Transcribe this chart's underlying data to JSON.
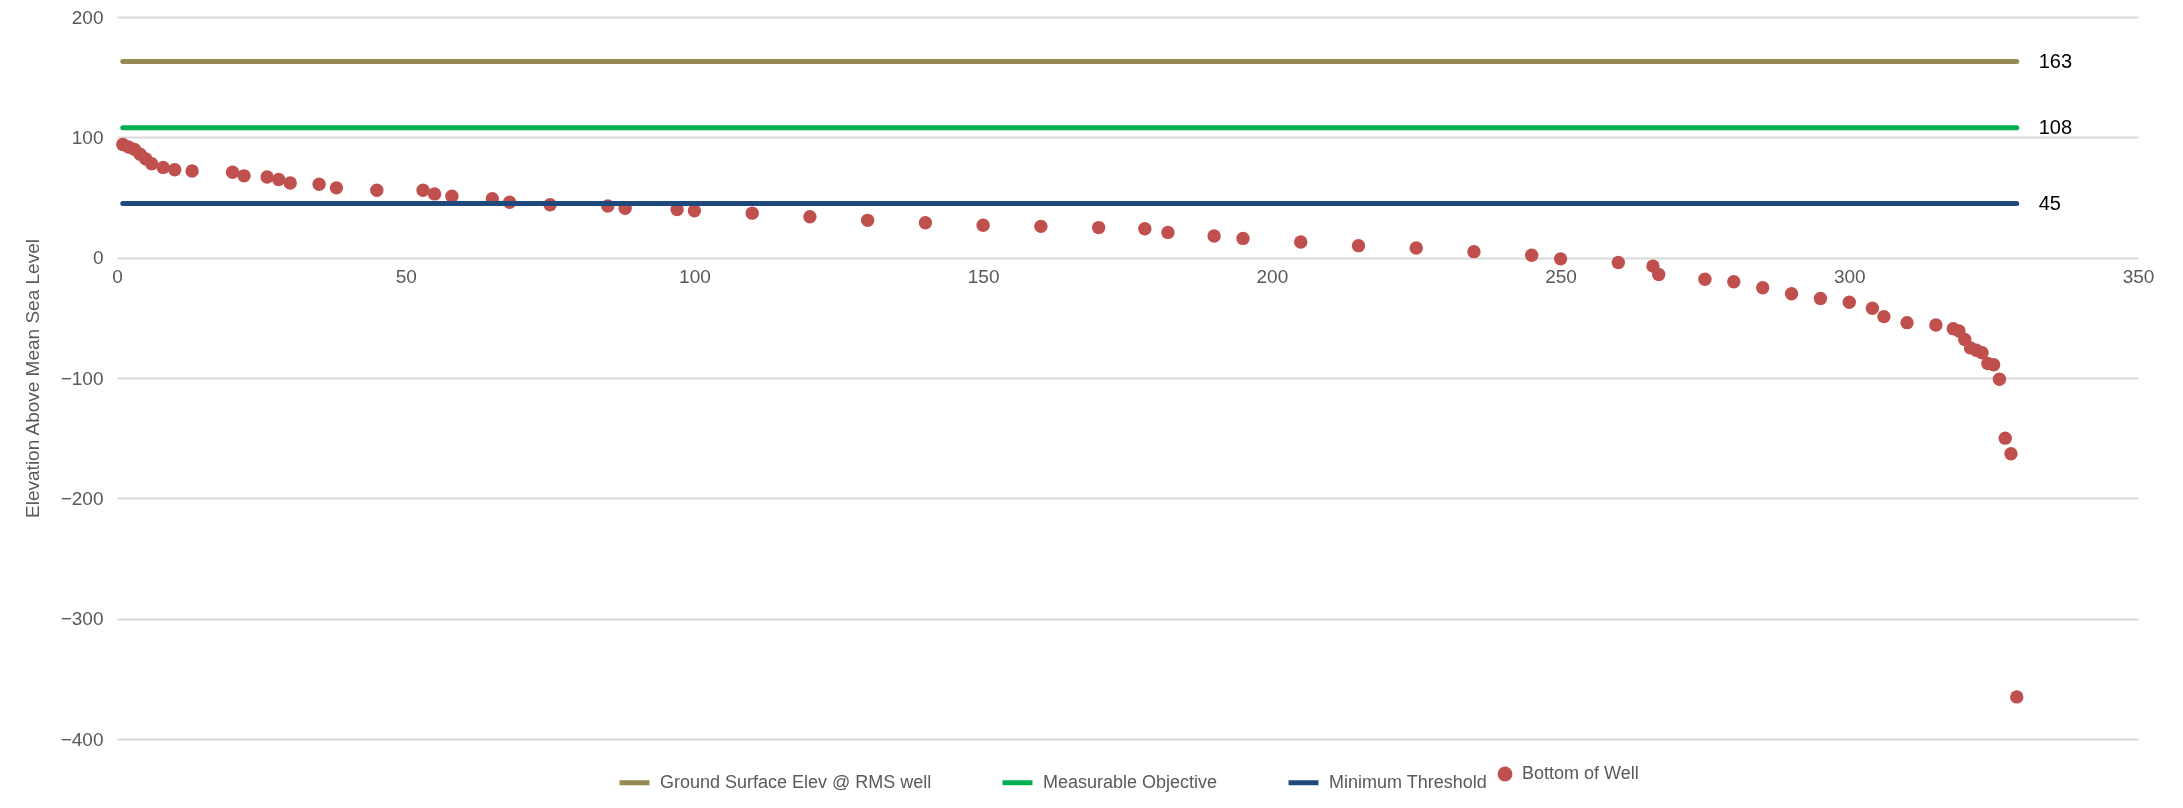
{
  "chart_data": {
    "type": "scatter",
    "ylabel": "Elevation Above Mean Sea Level",
    "xlim": [
      0,
      350
    ],
    "xticks": [
      0,
      50,
      100,
      150,
      200,
      250,
      300,
      350
    ],
    "ylim": [
      -400,
      200
    ],
    "yticks": [
      -400,
      -300,
      -200,
      -100,
      0,
      100,
      200
    ],
    "grid": "y",
    "legend": "bottom",
    "series": [
      {
        "name": "Ground Surface Elev @ RMS well",
        "type": "line",
        "color": "#948a54",
        "x": [
          1,
          329
        ],
        "values": [
          163,
          163
        ],
        "value_labels": [
          null,
          "163"
        ]
      },
      {
        "name": "Measurable Objective",
        "type": "line",
        "color": "#00b050",
        "x": [
          1,
          329
        ],
        "values": [
          108,
          108
        ],
        "value_labels": [
          null,
          "108"
        ]
      },
      {
        "name": "Bottom of Well",
        "marker": "circle",
        "color": "#c0504d",
        "x": [
          1,
          2,
          3,
          4,
          5,
          6,
          8,
          10,
          13,
          20,
          22,
          26,
          28,
          30,
          35,
          38,
          45,
          53,
          55,
          58,
          65,
          68,
          75,
          85,
          88,
          97,
          100,
          110,
          120,
          130,
          140,
          150,
          160,
          170,
          178,
          182,
          190,
          195,
          205,
          215,
          225,
          235,
          245,
          250,
          260,
          266,
          267,
          275,
          280,
          285,
          290,
          295,
          300,
          304,
          306,
          310,
          315,
          318,
          319,
          320,
          321,
          322,
          323,
          324,
          325,
          326,
          327,
          328,
          329
        ],
        "values": [
          94,
          92,
          90,
          86,
          82,
          78,
          75,
          73,
          72,
          71,
          68,
          67,
          65,
          62,
          61,
          58,
          56,
          56,
          53,
          51,
          49,
          46,
          44,
          43,
          41,
          40,
          39,
          37,
          34,
          31,
          29,
          27,
          26,
          25,
          24,
          21,
          18,
          16,
          13,
          10,
          8,
          5,
          2,
          -1,
          -4,
          -7,
          -14,
          -18,
          -20,
          -25,
          -30,
          -34,
          -37,
          -42,
          -49,
          -54,
          -56,
          -59,
          -61,
          -68,
          -75,
          -77,
          -79,
          -88,
          -89,
          -101,
          -150,
          -163,
          -365
        ]
      },
      {
        "name": "Minimum Threshold",
        "type": "line",
        "color": "#1f497d",
        "x": [
          1,
          329
        ],
        "values": [
          45,
          45
        ],
        "value_labels": [
          null,
          "45"
        ]
      }
    ]
  }
}
